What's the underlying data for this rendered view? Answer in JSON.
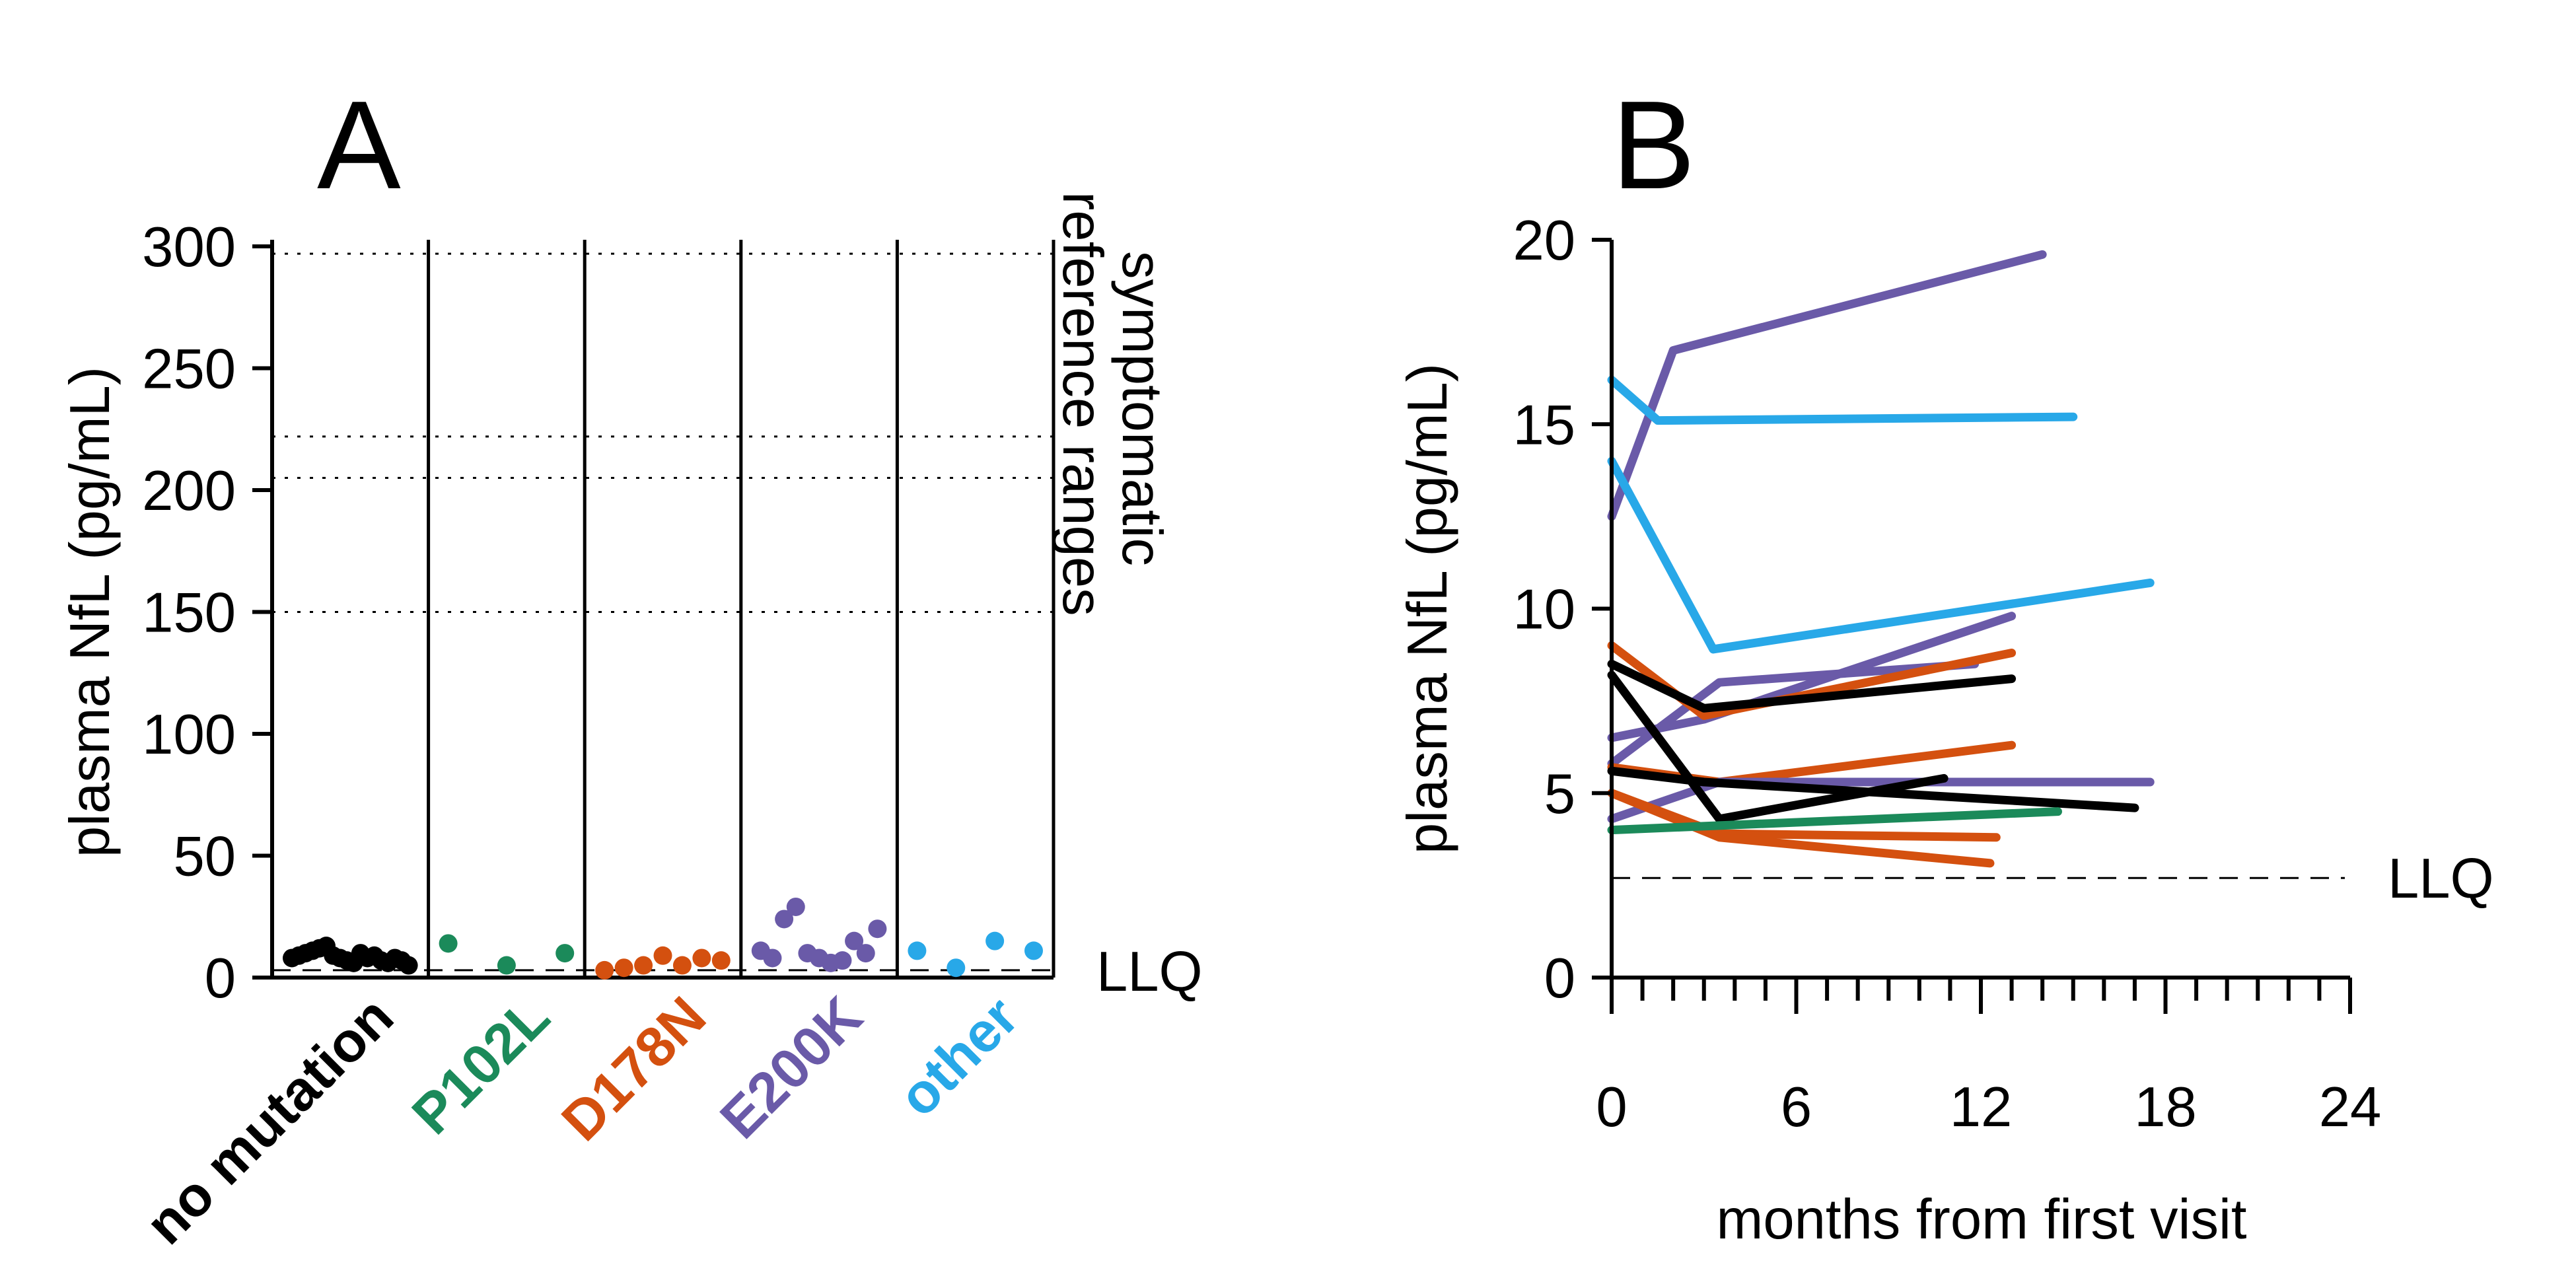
{
  "chart_data": [
    {
      "panel": "A",
      "type": "scatter",
      "ylabel": "plasma NfL (pg/mL)",
      "ylim": [
        0,
        300
      ],
      "yticks": [
        "0",
        "50",
        "100",
        "150",
        "200",
        "250",
        "300"
      ],
      "categories": [
        {
          "label": "no mutation",
          "color": "#000000"
        },
        {
          "label": "P102L",
          "color": "#1b8a5a"
        },
        {
          "label": "D178N",
          "color": "#d4500f"
        },
        {
          "label": "E200K",
          "color": "#6a5aa8"
        },
        {
          "label": "other",
          "color": "#28a8e8"
        }
      ],
      "points": [
        [
          8,
          9,
          10,
          11,
          12,
          13,
          9,
          8,
          7,
          6,
          10,
          8,
          9,
          7,
          6,
          8,
          7,
          5
        ],
        [
          14,
          5,
          10
        ],
        [
          3,
          4,
          5,
          9,
          5,
          8,
          7
        ],
        [
          11,
          8,
          24,
          29,
          10,
          8,
          6,
          7,
          15,
          10,
          20
        ],
        [
          11,
          4,
          15,
          11
        ]
      ],
      "reference_lines": [
        297,
        222,
        205,
        150
      ],
      "reference_label": "symptomatic reference ranges",
      "llq": 3,
      "llq_label": "LLQ"
    },
    {
      "panel": "B",
      "type": "line",
      "xlabel": "months from first visit",
      "ylabel": "plasma NfL (pg/mL)",
      "xlim": [
        0,
        24
      ],
      "ylim": [
        0,
        20
      ],
      "xticks": [
        "0",
        "6",
        "12",
        "18",
        "24"
      ],
      "yticks": [
        "0",
        "5",
        "10",
        "15",
        "20"
      ],
      "llq": 2.7,
      "llq_label": "LLQ",
      "series": [
        {
          "color": "#6a5aa8",
          "x": [
            0,
            2,
            14
          ],
          "y": [
            12.5,
            17,
            19.6
          ]
        },
        {
          "color": "#28a8e8",
          "x": [
            0,
            1.5,
            15
          ],
          "y": [
            16.2,
            15.1,
            15.2
          ]
        },
        {
          "color": "#28a8e8",
          "x": [
            0,
            3.3,
            17.5
          ],
          "y": [
            14,
            8.9,
            10.7
          ]
        },
        {
          "color": "#6a5aa8",
          "x": [
            0,
            3,
            13
          ],
          "y": [
            6.5,
            7.0,
            9.8
          ]
        },
        {
          "color": "#6a5aa8",
          "x": [
            0,
            3.5,
            11.8
          ],
          "y": [
            5.8,
            8.0,
            8.5
          ]
        },
        {
          "color": "#d4500f",
          "x": [
            0,
            3,
            13
          ],
          "y": [
            9.0,
            7.1,
            8.8
          ]
        },
        {
          "color": "#000000",
          "x": [
            0,
            3,
            13
          ],
          "y": [
            8.5,
            7.3,
            8.1
          ]
        },
        {
          "color": "#d4500f",
          "x": [
            0,
            3.5,
            13
          ],
          "y": [
            5.7,
            5.3,
            6.3
          ]
        },
        {
          "color": "#6a5aa8",
          "x": [
            0,
            3.5,
            17.5
          ],
          "y": [
            4.3,
            5.3,
            5.3
          ]
        },
        {
          "color": "#000000",
          "x": [
            0,
            3.5,
            10.8
          ],
          "y": [
            8.2,
            4.3,
            5.4
          ]
        },
        {
          "color": "#000000",
          "x": [
            0,
            3,
            17
          ],
          "y": [
            5.6,
            5.3,
            4.6
          ]
        },
        {
          "color": "#d4500f",
          "x": [
            0,
            3.5,
            12.5
          ],
          "y": [
            5.0,
            3.9,
            3.8
          ]
        },
        {
          "color": "#d4500f",
          "x": [
            0,
            3.5,
            12.3
          ],
          "y": [
            5.0,
            3.8,
            3.1
          ]
        },
        {
          "color": "#1b8a5a",
          "x": [
            0,
            14.5
          ],
          "y": [
            4.0,
            4.5
          ]
        }
      ]
    }
  ]
}
